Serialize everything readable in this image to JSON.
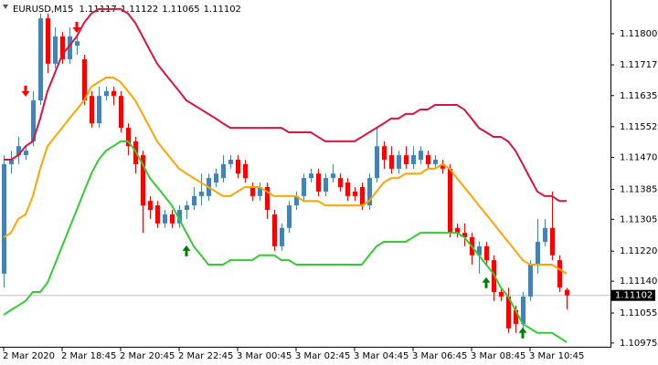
{
  "chart_data": {
    "type": "candlestick",
    "symbol": "EURUSD,M15",
    "categories": [
      "2 Mar 2020",
      null,
      null,
      null,
      null,
      null,
      null,
      null,
      "2 Mar 18:45",
      null,
      null,
      null,
      null,
      null,
      null,
      null,
      "2 Mar 20:45",
      null,
      null,
      null,
      null,
      null,
      null,
      null,
      "2 Mar 22:45",
      null,
      null,
      null,
      null,
      null,
      null,
      null,
      "3 Mar 00:45",
      null,
      null,
      null,
      null,
      null,
      null,
      null,
      "3 Mar 02:45",
      null,
      null,
      null,
      null,
      null,
      null,
      null,
      "3 Mar 04:45",
      null,
      null,
      null,
      null,
      null,
      null,
      null,
      "3 Mar 06:45",
      null,
      null,
      null,
      null,
      null,
      null,
      null,
      "3 Mar 08:45",
      null,
      null,
      null,
      null,
      null,
      null,
      null,
      "3 Mar 10:45",
      null,
      null,
      null,
      null,
      null
    ],
    "open": [
      1.1116,
      1.11452,
      1.11476,
      1.11476,
      1.11513,
      1.11622,
      1.11841,
      1.1172,
      1.11793,
      1.11732,
      1.11768,
      1.11732,
      1.11634,
      1.11561,
      1.11634,
      1.11647,
      1.11634,
      1.11549,
      1.11513,
      1.11476,
      1.11354,
      1.11342,
      1.11294,
      1.11318,
      1.11294,
      1.1133,
      1.11342,
      1.11367,
      1.11367,
      1.11403,
      1.11415,
      1.11452,
      1.11464,
      1.11452,
      1.11391,
      1.11367,
      1.11391,
      1.11318,
      1.11233,
      1.11282,
      1.11342,
      1.11367,
      1.11415,
      1.11427,
      1.11379,
      1.11415,
      1.11415,
      1.11403,
      1.11379,
      1.11391,
      1.11342,
      1.11415,
      1.115,
      1.11476,
      1.1144,
      1.11476,
      1.11452,
      1.11464,
      1.11476,
      1.11452,
      1.11452,
      1.1144,
      1.11282,
      1.11269,
      1.11257,
      1.11209,
      1.11233,
      1.11196,
      1.11111,
      1.11099,
      1.11063,
      1.11026,
      1.11099,
      1.11184,
      1.11245,
      1.11282,
      1.11196,
      1.11117
    ],
    "high": [
      1.11476,
      1.11488,
      1.11525,
      1.115,
      1.11647,
      1.11854,
      1.11854,
      1.11817,
      1.11805,
      1.11817,
      1.11793,
      1.11744,
      1.11647,
      1.11659,
      1.11659,
      1.11659,
      1.11647,
      1.11561,
      1.11525,
      1.11488,
      1.11367,
      1.11354,
      1.1133,
      1.1133,
      1.11342,
      1.11354,
      1.11391,
      1.11427,
      1.11427,
      1.1144,
      1.11476,
      1.11476,
      1.11476,
      1.11464,
      1.11403,
      1.11403,
      1.11403,
      1.1133,
      1.11294,
      1.11354,
      1.11379,
      1.11427,
      1.1144,
      1.1144,
      1.11427,
      1.11452,
      1.11427,
      1.11415,
      1.11391,
      1.11403,
      1.11427,
      1.11549,
      1.11513,
      1.115,
      1.11488,
      1.115,
      1.115,
      1.115,
      1.11488,
      1.11476,
      1.11464,
      1.11452,
      1.11294,
      1.11294,
      1.11269,
      1.11245,
      1.11245,
      1.11209,
      1.11123,
      1.11123,
      1.11075,
      1.11111,
      1.11196,
      1.11306,
      1.11306,
      1.11379,
      1.11209,
      1.11122
    ],
    "low": [
      1.11123,
      1.11427,
      1.11452,
      1.11464,
      1.115,
      1.1161,
      1.11695,
      1.11707,
      1.1172,
      1.1172,
      1.11744,
      1.1161,
      1.11549,
      1.11549,
      1.11622,
      1.1161,
      1.11537,
      1.11476,
      1.11427,
      1.11269,
      1.11306,
      1.11282,
      1.11282,
      1.11282,
      1.11282,
      1.11306,
      1.1133,
      1.11342,
      1.11354,
      1.11391,
      1.11403,
      1.1144,
      1.11415,
      1.11403,
      1.11354,
      1.11354,
      1.11306,
      1.11221,
      1.11221,
      1.11269,
      1.1133,
      1.11354,
      1.11403,
      1.11367,
      1.11367,
      1.11403,
      1.11379,
      1.11354,
      1.11354,
      1.1133,
      1.1133,
      1.11403,
      1.1144,
      1.11427,
      1.11427,
      1.1144,
      1.1144,
      1.11452,
      1.1144,
      1.1144,
      1.11427,
      1.11257,
      1.11257,
      1.11233,
      1.11184,
      1.1116,
      1.11184,
      1.11087,
      1.11087,
      1.11002,
      1.11002,
      1.11014,
      1.11087,
      1.1116,
      1.11233,
      1.11196,
      1.11111,
      1.11065
    ],
    "close": [
      1.11452,
      1.11464,
      1.115,
      1.11488,
      1.11622,
      1.11841,
      1.1172,
      1.11793,
      1.11732,
      1.11793,
      1.1178,
      1.11622,
      1.11561,
      1.11634,
      1.11647,
      1.11634,
      1.11549,
      1.115,
      1.11452,
      1.11342,
      1.1133,
      1.11294,
      1.11318,
      1.11294,
      1.1133,
      1.11342,
      1.11367,
      1.11379,
      1.11415,
      1.11427,
      1.11452,
      1.11464,
      1.11427,
      1.11415,
      1.11367,
      1.11391,
      1.1133,
      1.11233,
      1.11282,
      1.11342,
      1.11367,
      1.11415,
      1.11427,
      1.11379,
      1.11415,
      1.11427,
      1.11391,
      1.11367,
      1.11367,
      1.11342,
      1.11415,
      1.115,
      1.11464,
      1.1144,
      1.11476,
      1.11452,
      1.11476,
      1.11488,
      1.11452,
      1.11464,
      1.1144,
      1.11269,
      1.11269,
      1.11257,
      1.11209,
      1.11233,
      1.11196,
      1.11111,
      1.11099,
      1.11014,
      1.11026,
      1.11099,
      1.11184,
      1.11245,
      1.11282,
      1.11209,
      1.11123,
      1.11102
    ],
    "up_color": "#4682b4",
    "down_color": "#ff0000",
    "series": [
      {
        "color": "#dc143c",
        "values": [
          1.11464,
          1.11464,
          1.11476,
          1.115,
          1.11513,
          1.11574,
          1.11647,
          1.11695,
          1.11744,
          1.11768,
          1.11793,
          1.11829,
          1.11854,
          1.11866,
          1.11866,
          1.11866,
          1.11866,
          1.11854,
          1.11829,
          1.11793,
          1.11756,
          1.1172,
          1.11695,
          1.11671,
          1.11647,
          1.11622,
          1.1161,
          1.11598,
          1.11586,
          1.11574,
          1.11561,
          1.11549,
          1.11549,
          1.11549,
          1.11549,
          1.11549,
          1.11549,
          1.11549,
          1.11549,
          1.11537,
          1.11537,
          1.11537,
          1.11537,
          1.11525,
          1.11513,
          1.11513,
          1.11513,
          1.11513,
          1.11513,
          1.11525,
          1.11537,
          1.11549,
          1.11561,
          1.11574,
          1.11574,
          1.11586,
          1.11586,
          1.11598,
          1.11598,
          1.1161,
          1.1161,
          1.1161,
          1.1161,
          1.11598,
          1.11574,
          1.11549,
          1.11537,
          1.11525,
          1.11525,
          1.11513,
          1.11488,
          1.11452,
          1.11415,
          1.11379,
          1.11367,
          1.11367,
          1.11354,
          1.11354
        ]
      },
      {
        "color": "#ffa500",
        "values": [
          1.11257,
          1.11269,
          1.11306,
          1.11318,
          1.11367,
          1.1144,
          1.115,
          1.11525,
          1.11549,
          1.11574,
          1.11598,
          1.11622,
          1.11659,
          1.11671,
          1.11683,
          1.11683,
          1.11671,
          1.11647,
          1.11622,
          1.11586,
          1.11549,
          1.11513,
          1.11488,
          1.11464,
          1.1144,
          1.11427,
          1.11415,
          1.11403,
          1.11391,
          1.11379,
          1.11367,
          1.11367,
          1.11379,
          1.11391,
          1.11391,
          1.11391,
          1.11379,
          1.11367,
          1.11367,
          1.11367,
          1.11367,
          1.11354,
          1.11354,
          1.11354,
          1.11342,
          1.11342,
          1.11342,
          1.11342,
          1.11342,
          1.11342,
          1.11354,
          1.11379,
          1.11403,
          1.11415,
          1.11415,
          1.11427,
          1.11427,
          1.11427,
          1.1144,
          1.1144,
          1.11452,
          1.1144,
          1.11415,
          1.11391,
          1.11367,
          1.11342,
          1.11318,
          1.11294,
          1.11269,
          1.11245,
          1.11221,
          1.11196,
          1.11184,
          1.11184,
          1.11184,
          1.11184,
          1.11172,
          1.1116
        ]
      },
      {
        "color": "#32cd32",
        "values": [
          1.1105,
          1.11063,
          1.11075,
          1.11087,
          1.11111,
          1.11111,
          1.11136,
          1.11184,
          1.11233,
          1.11282,
          1.1133,
          1.11379,
          1.11427,
          1.11464,
          1.11488,
          1.115,
          1.11513,
          1.11513,
          1.11488,
          1.11452,
          1.11415,
          1.11391,
          1.11367,
          1.11342,
          1.11306,
          1.11269,
          1.11233,
          1.11209,
          1.11184,
          1.11184,
          1.11184,
          1.11196,
          1.11196,
          1.11196,
          1.11196,
          1.11209,
          1.11209,
          1.11209,
          1.11196,
          1.11196,
          1.11184,
          1.11184,
          1.11184,
          1.11184,
          1.11184,
          1.11184,
          1.11184,
          1.11184,
          1.11184,
          1.11184,
          1.11209,
          1.11233,
          1.11245,
          1.11245,
          1.11245,
          1.11245,
          1.11257,
          1.11269,
          1.11269,
          1.11269,
          1.11269,
          1.11269,
          1.11269,
          1.11257,
          1.11233,
          1.11209,
          1.11184,
          1.1116,
          1.11123,
          1.11099,
          1.11063,
          1.11026,
          1.11014,
          1.11002,
          1.11002,
          1.11002,
          1.1099,
          1.10977
        ]
      }
    ],
    "sell_arrows": {
      "color": "#ff0000",
      "values": [
        null,
        null,
        null,
        1.11647,
        null,
        null,
        null,
        null,
        null,
        null,
        1.11817,
        null,
        null,
        null,
        null,
        null,
        null,
        null,
        null,
        null,
        null,
        null,
        null,
        null,
        null,
        null,
        null,
        null,
        null,
        null,
        null,
        null,
        null,
        null,
        null,
        null,
        null,
        null,
        null,
        null,
        null,
        null,
        null,
        null,
        null,
        null,
        null,
        null,
        null,
        null,
        null,
        null,
        null,
        null,
        null,
        null,
        null,
        null,
        null,
        null,
        null,
        null,
        null,
        null,
        null,
        null,
        null,
        null,
        null,
        null,
        null,
        null,
        null,
        null,
        null,
        null,
        null,
        null
      ]
    },
    "buy_arrows": {
      "color": "#008000",
      "values": [
        null,
        null,
        null,
        null,
        null,
        null,
        null,
        null,
        null,
        null,
        null,
        null,
        null,
        null,
        null,
        null,
        null,
        null,
        null,
        null,
        null,
        null,
        null,
        null,
        null,
        1.11221,
        null,
        null,
        null,
        null,
        null,
        null,
        null,
        null,
        null,
        null,
        null,
        null,
        null,
        null,
        null,
        null,
        null,
        null,
        null,
        null,
        null,
        null,
        null,
        null,
        null,
        null,
        null,
        null,
        null,
        null,
        null,
        null,
        null,
        null,
        null,
        null,
        null,
        null,
        null,
        null,
        1.11136,
        null,
        null,
        null,
        null,
        1.11002,
        null,
        null,
        null,
        null,
        null,
        null
      ]
    },
    "ylim": [
      1.10965,
      1.1189
    ],
    "yticks": [
      {
        "value": 1.118,
        "label": "1.11800"
      },
      1.11717,
      1.11635,
      1.11552,
      {
        "value": 1.1147,
        "label": "1.11470"
      },
      1.11385,
      1.11305,
      {
        "value": 1.1122,
        "label": "1.11220"
      },
      {
        "value": 1.1114,
        "label": "1.11140"
      },
      1.11055,
      1.10975
    ],
    "grid": false
  }
}
